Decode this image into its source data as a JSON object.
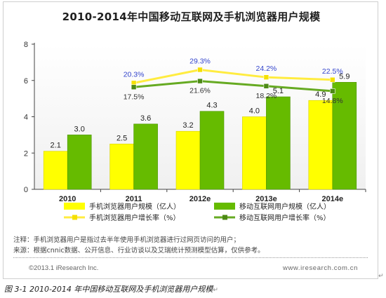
{
  "chart_data": {
    "type": "bar",
    "title": "2010-2014年中国移动互联网及手机浏览器用户规模",
    "categories": [
      "2010",
      "2011",
      "2012e",
      "2013e",
      "2014e"
    ],
    "ylim": [
      0,
      8
    ],
    "yticks": [
      "0",
      "2",
      "4",
      "6",
      "8"
    ],
    "grid": false,
    "legend_position": "bottom",
    "series": [
      {
        "name": "手机浏览器用户规模（亿人）",
        "type": "bar",
        "color": "#ffff00",
        "values": [
          2.1,
          2.5,
          3.2,
          4.0,
          4.9
        ],
        "labels": [
          "2.1",
          "2.5",
          "3.2",
          "4.0",
          "4.9"
        ]
      },
      {
        "name": "移动互联网用户规模（亿人）",
        "type": "bar",
        "color": "#66bb00",
        "values": [
          3.0,
          3.6,
          4.3,
          5.1,
          5.9
        ],
        "labels": [
          "3.0",
          "3.6",
          "4.3",
          "5.1",
          "5.9"
        ]
      },
      {
        "name": "手机浏览器用户增长率（%）",
        "type": "line",
        "color": "#ffef40",
        "x": [
          "2011",
          "2012e",
          "2013e",
          "2014e"
        ],
        "values": [
          20.3,
          29.3,
          24.2,
          22.5
        ],
        "labels": [
          "20.3%",
          "29.3%",
          "24.2%",
          "22.5%"
        ]
      },
      {
        "name": "移动互联网用户增长率（%）",
        "type": "line",
        "color": "#66aa22",
        "x": [
          "2011",
          "2012e",
          "2013e",
          "2014e"
        ],
        "values": [
          17.5,
          21.6,
          18.2,
          14.8
        ],
        "labels": [
          "17.5%",
          "21.6%",
          "18.2%",
          "14.8%"
        ]
      }
    ]
  },
  "notes": {
    "line1": "注释：手机浏览器用户是指过去半年使用手机浏览器进行过网页访问的用户；",
    "line2": "来源：根据cnnic数据、公开信息、行业访谈以及艾瑞统计预测模型估算，仅供参考。"
  },
  "footer": {
    "left": "©2013.1 iResearch Inc.",
    "right": "www.iresearch.com.cn"
  },
  "caption": "图 3-1 2010-2014 年中国移动互联网及手机浏览器用户规模"
}
